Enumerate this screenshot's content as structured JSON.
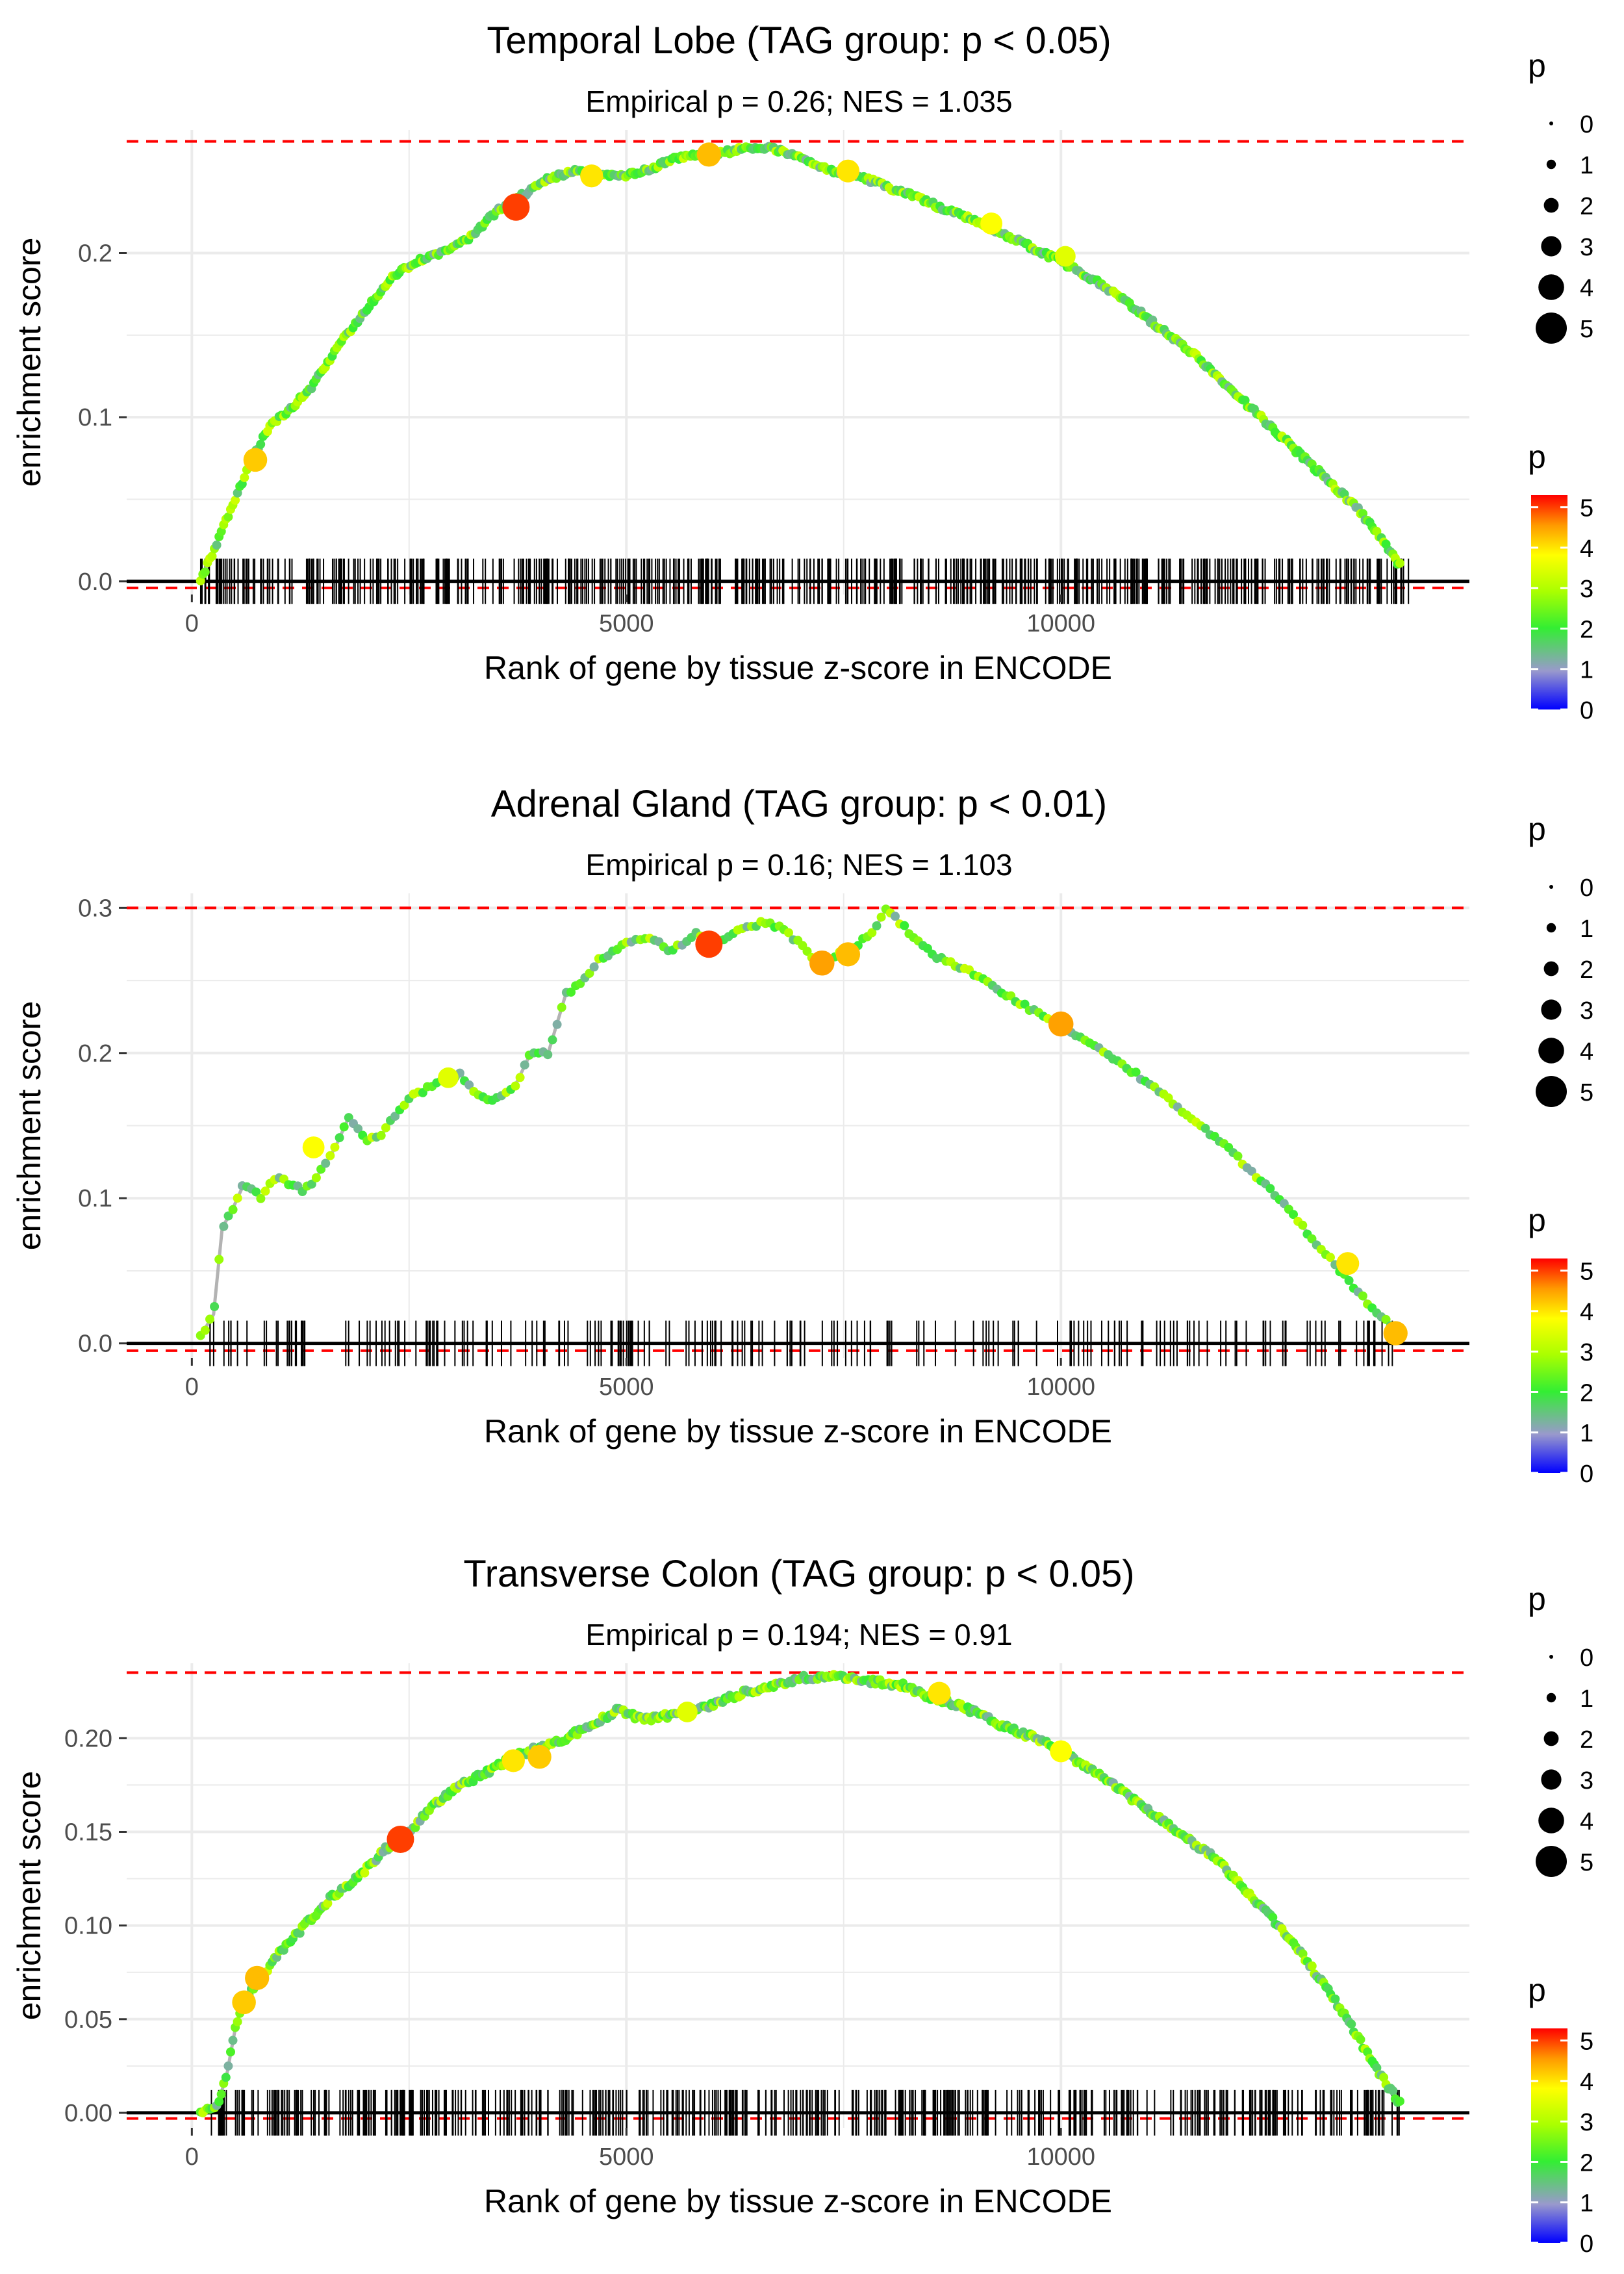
{
  "figure": {
    "background": "#ffffff"
  },
  "style": {
    "grid_color": "#ebebeb",
    "rug_color": "#000000",
    "baseline_color": "#000000",
    "dashed_color": "#ff0000",
    "line_color": "#b3b3b3",
    "gradient_colors": [
      "#0000ff",
      "#9999cc",
      "#33ee33",
      "#aaff00",
      "#ffff00",
      "#ff9900",
      "#ff0000"
    ]
  },
  "chart_data": [
    {
      "type": "line",
      "title": "Temporal Lobe (TAG group: p < 0.05)",
      "subtitle": "Empirical p = 0.26; NES = 1.035",
      "xlabel": "Rank of gene by tissue z-score in ENCODE",
      "ylabel": "enrichment score",
      "xlim": [
        -750,
        14700
      ],
      "ylim": [
        -0.008,
        0.275
      ],
      "x_ticks": [
        0,
        5000,
        10000
      ],
      "x_tick_labels": [
        "0",
        "5000",
        "10000"
      ],
      "y_ticks": [
        0.0,
        0.1,
        0.2
      ],
      "y_tick_labels": [
        "0.0",
        "0.1",
        "0.2"
      ],
      "max_es": 0.268,
      "min_es": -0.004,
      "curve_x": [
        100,
        300,
        500,
        700,
        900,
        1100,
        1400,
        1700,
        2000,
        2300,
        2600,
        2900,
        3200,
        3500,
        3800,
        4100,
        4400,
        4700,
        5000,
        5300,
        5600,
        5900,
        6200,
        6500,
        6800,
        7100,
        7400,
        7700,
        8000,
        8300,
        8600,
        8900,
        9200,
        9500,
        9800,
        10100,
        10400,
        10700,
        11000,
        11300,
        11600,
        11900,
        12200,
        12500,
        12800,
        13100,
        13400,
        13700,
        13900
      ],
      "curve_y": [
        0.0,
        0.025,
        0.05,
        0.075,
        0.095,
        0.103,
        0.12,
        0.145,
        0.165,
        0.185,
        0.195,
        0.2,
        0.21,
        0.225,
        0.235,
        0.245,
        0.25,
        0.248,
        0.247,
        0.252,
        0.258,
        0.26,
        0.262,
        0.265,
        0.262,
        0.255,
        0.25,
        0.247,
        0.24,
        0.235,
        0.228,
        0.222,
        0.215,
        0.208,
        0.2,
        0.192,
        0.183,
        0.173,
        0.16,
        0.148,
        0.135,
        0.12,
        0.105,
        0.09,
        0.075,
        0.06,
        0.045,
        0.025,
        0.01
      ],
      "highlights": [
        {
          "x": 730,
          "y": 0.074,
          "p": 4.2
        },
        {
          "x": 3730,
          "y": 0.228,
          "p": 5.0
        },
        {
          "x": 4600,
          "y": 0.247,
          "p": 4.0
        },
        {
          "x": 5950,
          "y": 0.26,
          "p": 4.3
        },
        {
          "x": 7550,
          "y": 0.25,
          "p": 4.0
        },
        {
          "x": 9200,
          "y": 0.218,
          "p": 3.8
        },
        {
          "x": 10050,
          "y": 0.198,
          "p": 3.5
        }
      ],
      "rug_range": [
        100,
        14000
      ],
      "rug_count": 560,
      "rug_density": "dense",
      "size_legend": {
        "title": "p",
        "labels": [
          "0",
          "1",
          "2",
          "3",
          "4",
          "5"
        ]
      },
      "color_legend": {
        "title": "p",
        "labels": [
          "5",
          "4",
          "3",
          "2",
          "1",
          "0"
        ]
      }
    },
    {
      "type": "line",
      "title": "Adrenal Gland (TAG group: p < 0.01)",
      "subtitle": "Empirical p = 0.16; NES = 1.103",
      "xlabel": "Rank of gene by tissue z-score in ENCODE",
      "ylabel": "enrichment score",
      "xlim": [
        -750,
        14700
      ],
      "ylim": [
        -0.01,
        0.31
      ],
      "x_ticks": [
        0,
        5000,
        10000
      ],
      "x_tick_labels": [
        "0",
        "5000",
        "10000"
      ],
      "y_ticks": [
        0.0,
        0.1,
        0.2,
        0.3
      ],
      "y_tick_labels": [
        "0.0",
        "0.1",
        "0.2",
        "0.3"
      ],
      "max_es": 0.3,
      "min_es": -0.005,
      "curve_x": [
        100,
        250,
        350,
        450,
        600,
        700,
        800,
        900,
        1000,
        1100,
        1300,
        1500,
        1650,
        1800,
        2000,
        2200,
        2500,
        2700,
        2900,
        3100,
        3300,
        3500,
        3700,
        3900,
        4100,
        4300,
        4500,
        4700,
        5000,
        5300,
        5500,
        5800,
        6000,
        6300,
        6600,
        6800,
        7000,
        7200,
        7500,
        7800,
        8000,
        8300,
        8600,
        9000,
        9500,
        10000,
        10500,
        11000,
        11500,
        12000,
        12500,
        13000,
        13500,
        13900
      ],
      "curve_y": [
        0.005,
        0.02,
        0.08,
        0.09,
        0.11,
        0.105,
        0.1,
        0.11,
        0.115,
        0.11,
        0.105,
        0.12,
        0.135,
        0.155,
        0.14,
        0.145,
        0.17,
        0.175,
        0.182,
        0.185,
        0.17,
        0.168,
        0.175,
        0.2,
        0.2,
        0.24,
        0.25,
        0.265,
        0.275,
        0.28,
        0.27,
        0.282,
        0.275,
        0.285,
        0.29,
        0.285,
        0.275,
        0.262,
        0.27,
        0.28,
        0.3,
        0.28,
        0.265,
        0.255,
        0.235,
        0.22,
        0.2,
        0.18,
        0.155,
        0.13,
        0.1,
        0.065,
        0.03,
        0.005
      ],
      "highlights": [
        {
          "x": 1400,
          "y": 0.135,
          "p": 3.8
        },
        {
          "x": 2950,
          "y": 0.183,
          "p": 3.5
        },
        {
          "x": 5950,
          "y": 0.275,
          "p": 5.0
        },
        {
          "x": 7250,
          "y": 0.262,
          "p": 4.5
        },
        {
          "x": 7550,
          "y": 0.268,
          "p": 4.3
        },
        {
          "x": 10000,
          "y": 0.22,
          "p": 4.5
        },
        {
          "x": 13300,
          "y": 0.055,
          "p": 4.0
        },
        {
          "x": 13850,
          "y": 0.007,
          "p": 4.3
        }
      ],
      "rug_range": [
        200,
        13900
      ],
      "rug_count": 210,
      "rug_density": "sparse",
      "size_legend": {
        "title": "p",
        "labels": [
          "0",
          "1",
          "2",
          "3",
          "4",
          "5"
        ]
      },
      "color_legend": {
        "title": "p",
        "labels": [
          "5",
          "4",
          "3",
          "2",
          "1",
          "0"
        ]
      }
    },
    {
      "type": "line",
      "title": "Transverse Colon (TAG group: p < 0.05)",
      "subtitle": "Empirical p = 0.194; NES = 0.91",
      "xlabel": "Rank of gene by tissue z-score in ENCODE",
      "ylabel": "enrichment score",
      "xlim": [
        -750,
        14700
      ],
      "ylim": [
        -0.008,
        0.24
      ],
      "x_ticks": [
        0,
        5000,
        10000
      ],
      "x_tick_labels": [
        "0",
        "5000",
        "10000"
      ],
      "y_ticks": [
        0.0,
        0.05,
        0.1,
        0.15,
        0.2
      ],
      "y_tick_labels": [
        "0.00",
        "0.05",
        "0.10",
        "0.15",
        "0.20"
      ],
      "max_es": 0.235,
      "min_es": -0.003,
      "curve_x": [
        100,
        300,
        400,
        500,
        600,
        800,
        1000,
        1300,
        1600,
        1900,
        2200,
        2500,
        2800,
        3100,
        3400,
        3700,
        4000,
        4300,
        4600,
        4900,
        5200,
        5500,
        5800,
        6100,
        6400,
        6700,
        7000,
        7300,
        7600,
        7900,
        8200,
        8500,
        8800,
        9100,
        9400,
        9700,
        10000,
        10300,
        10600,
        10900,
        11200,
        11500,
        11800,
        12100,
        12400,
        12700,
        13000,
        13300,
        13600,
        13900
      ],
      "curve_y": [
        0.0,
        0.005,
        0.02,
        0.045,
        0.06,
        0.072,
        0.085,
        0.1,
        0.115,
        0.125,
        0.14,
        0.15,
        0.165,
        0.175,
        0.182,
        0.19,
        0.195,
        0.2,
        0.207,
        0.215,
        0.21,
        0.212,
        0.215,
        0.22,
        0.225,
        0.228,
        0.232,
        0.233,
        0.232,
        0.23,
        0.228,
        0.222,
        0.218,
        0.212,
        0.205,
        0.2,
        0.193,
        0.185,
        0.175,
        0.165,
        0.155,
        0.145,
        0.135,
        0.12,
        0.105,
        0.09,
        0.07,
        0.05,
        0.025,
        0.005
      ],
      "highlights": [
        {
          "x": 600,
          "y": 0.059,
          "p": 4.2
        },
        {
          "x": 750,
          "y": 0.072,
          "p": 4.3
        },
        {
          "x": 2400,
          "y": 0.146,
          "p": 5.0
        },
        {
          "x": 3700,
          "y": 0.188,
          "p": 4.0
        },
        {
          "x": 4000,
          "y": 0.19,
          "p": 4.2
        },
        {
          "x": 5700,
          "y": 0.214,
          "p": 3.5
        },
        {
          "x": 8600,
          "y": 0.224,
          "p": 4.0
        },
        {
          "x": 10000,
          "y": 0.193,
          "p": 3.8
        }
      ],
      "rug_range": [
        200,
        13900
      ],
      "rug_count": 500,
      "rug_density": "dense",
      "size_legend": {
        "title": "p",
        "labels": [
          "0",
          "1",
          "2",
          "3",
          "4",
          "5"
        ]
      },
      "color_legend": {
        "title": "p",
        "labels": [
          "5",
          "4",
          "3",
          "2",
          "1",
          "0"
        ]
      }
    }
  ]
}
